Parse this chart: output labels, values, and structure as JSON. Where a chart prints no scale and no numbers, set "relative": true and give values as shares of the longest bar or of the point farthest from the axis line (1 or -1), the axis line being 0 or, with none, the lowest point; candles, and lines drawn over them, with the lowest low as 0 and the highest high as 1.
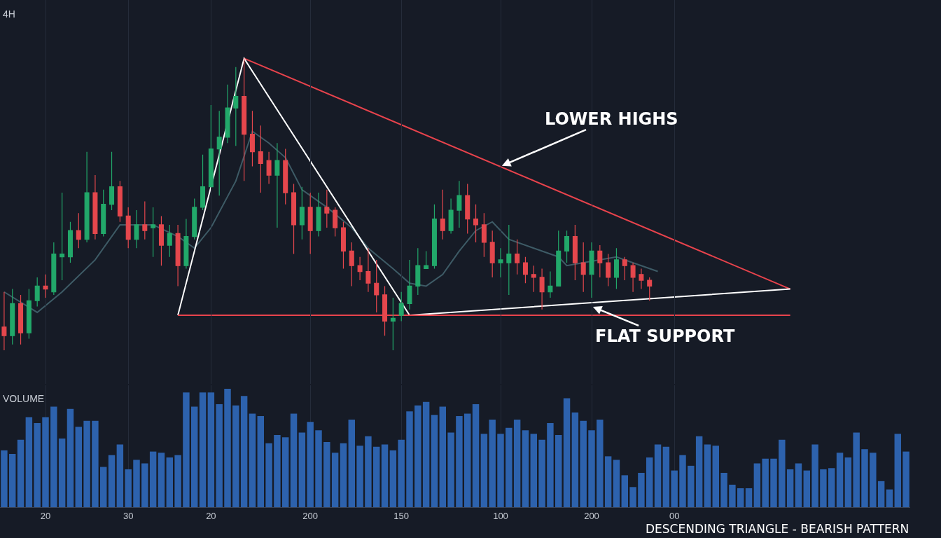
{
  "chart_data": [
    {
      "type": "candlestick",
      "title": "4H",
      "relative": true,
      "grid": "x",
      "tick_labels": false,
      "categories": [
        null,
        null,
        null,
        null,
        null,
        "20",
        null,
        null,
        null,
        null,
        null,
        null,
        null,
        null,
        null,
        "30",
        null,
        null,
        null,
        null,
        null,
        null,
        null,
        null,
        null,
        "20",
        null,
        null,
        null,
        null,
        null,
        null,
        null,
        null,
        null,
        null,
        null,
        "200",
        null,
        null,
        null,
        null,
        null,
        null,
        null,
        null,
        null,
        null,
        "150",
        null,
        null,
        null,
        null,
        null,
        null,
        null,
        null,
        null,
        null,
        null,
        "100",
        null,
        null,
        null,
        null,
        null,
        null,
        null,
        null,
        null,
        null,
        "200",
        null,
        null,
        null,
        null,
        null,
        null,
        null,
        null,
        null,
        "00",
        null,
        null,
        null,
        null,
        null,
        null,
        null,
        null,
        null,
        null,
        null,
        null,
        null,
        null,
        null,
        null,
        null,
        null,
        null,
        null,
        null,
        null,
        null,
        null,
        null,
        null,
        null,
        null
      ],
      "colors": [
        "#e5474d",
        "#22a86a",
        "#e5474d",
        "#22a86a",
        "#22a86a",
        "#e5474d",
        "#22a86a",
        "#22a86a",
        "#22a86a",
        "#e5474d",
        "#22a86a",
        "#e5474d",
        "#22a86a",
        "#22a86a",
        "#e5474d",
        "#e5474d",
        "#22a86a",
        "#e5474d",
        "#22a86a",
        "#e5474d",
        "#22a86a",
        "#e5474d",
        "#22a86a",
        "#22a86a",
        "#22a86a",
        "#22a86a",
        "#22a86a",
        "#22a86a",
        "#22a86a",
        "#e5474d",
        "#e5474d",
        "#e5474d",
        "#e5474d",
        "#22a86a",
        "#e5474d",
        "#e5474d",
        "#22a86a",
        "#e5474d",
        "#22a86a",
        "#e5474d",
        "#e5474d",
        "#e5474d",
        "#e5474d",
        "#e5474d",
        "#e5474d",
        "#e5474d",
        "#e5474d",
        "#22a86a",
        "#22a86a",
        "#22a86a",
        "#22a86a",
        "#22a86a",
        "#22a86a",
        "#e5474d",
        "#22a86a",
        "#22a86a",
        "#e5474d",
        "#e5474d",
        "#e5474d",
        "#e5474d",
        "#22a86a",
        "#22a86a",
        "#e5474d",
        "#e5474d",
        "#e5474d",
        "#e5474d",
        "#22a86a",
        "#22a86a",
        "#22a86a",
        "#e5474d",
        "#e5474d",
        "#22a86a",
        "#e5474d",
        "#e5474d",
        "#22a86a",
        "#e5474d",
        "#e5474d",
        "#e5474d",
        "#e5474d",
        null,
        null,
        null,
        null,
        null,
        null,
        null,
        null,
        null,
        null,
        null,
        null,
        null,
        null,
        null,
        null,
        null,
        null,
        null,
        null,
        null,
        null,
        null,
        null,
        null,
        null,
        null,
        null,
        null,
        null,
        null
      ],
      "ohlc": [
        [
          0.08,
          0.2,
          0,
          0.05
        ],
        [
          0.05,
          0.21,
          0.02,
          0.16
        ],
        [
          0.16,
          0.19,
          0.02,
          0.06
        ],
        [
          0.06,
          0.21,
          0.04,
          0.17
        ],
        [
          0.17,
          0.25,
          0.15,
          0.22
        ],
        [
          0.22,
          0.26,
          0.18,
          0.21
        ],
        [
          0.2,
          0.37,
          0.19,
          0.33
        ],
        [
          0.32,
          0.54,
          0.24,
          0.33
        ],
        [
          0.32,
          0.44,
          0.3,
          0.41
        ],
        [
          0.41,
          0.47,
          0.35,
          0.38
        ],
        [
          0.38,
          0.68,
          0.37,
          0.54
        ],
        [
          0.54,
          0.6,
          0.38,
          0.4
        ],
        [
          0.4,
          0.55,
          0.39,
          0.5
        ],
        [
          0.5,
          0.68,
          0.48,
          0.56
        ],
        [
          0.56,
          0.58,
          0.44,
          0.46
        ],
        [
          0.46,
          0.49,
          0.35,
          0.38
        ],
        [
          0.38,
          0.48,
          0.35,
          0.43
        ],
        [
          0.43,
          0.51,
          0.38,
          0.41
        ],
        [
          0.42,
          0.49,
          0.32,
          0.43
        ],
        [
          0.43,
          0.46,
          0.29,
          0.36
        ],
        [
          0.36,
          0.43,
          0.32,
          0.4
        ],
        [
          0.4,
          0.43,
          0.22,
          0.29
        ],
        [
          0.29,
          0.45,
          0.28,
          0.39
        ],
        [
          0.39,
          0.52,
          0.38,
          0.49
        ],
        [
          0.49,
          0.67,
          0.48,
          0.56
        ],
        [
          0.56,
          0.84,
          0.56,
          0.69
        ],
        [
          0.69,
          0.82,
          0.53,
          0.73
        ],
        [
          0.73,
          0.91,
          0.71,
          0.83
        ],
        [
          0.83,
          0.97,
          0.7,
          0.87
        ],
        [
          0.87,
          1,
          0.58,
          0.74
        ],
        [
          0.74,
          0.82,
          0.63,
          0.68
        ],
        [
          0.68,
          0.77,
          0.54,
          0.64
        ],
        [
          0.65,
          0.68,
          0.57,
          0.6
        ],
        [
          0.6,
          0.71,
          0.42,
          0.65
        ],
        [
          0.65,
          0.69,
          0.5,
          0.54
        ],
        [
          0.54,
          0.57,
          0.33,
          0.43
        ],
        [
          0.43,
          0.56,
          0.38,
          0.49
        ],
        [
          0.49,
          0.54,
          0.33,
          0.41
        ],
        [
          0.41,
          0.54,
          0.39,
          0.49
        ],
        [
          0.49,
          0.55,
          0.42,
          0.47
        ],
        [
          0.48,
          0.49,
          0.39,
          0.42
        ],
        [
          0.42,
          0.44,
          0.28,
          0.34
        ],
        [
          0.34,
          0.37,
          0.22,
          0.29
        ],
        [
          0.29,
          0.32,
          0.24,
          0.27
        ],
        [
          0.27,
          0.35,
          0.2,
          0.23
        ],
        [
          0.23,
          0.31,
          0.13,
          0.19
        ],
        [
          0.19,
          0.22,
          0.05,
          0.1
        ],
        [
          0.1,
          0.18,
          0,
          0.11
        ],
        [
          0.12,
          0.2,
          0.1,
          0.16
        ],
        [
          0.16,
          0.31,
          0.14,
          0.22
        ],
        [
          0.22,
          0.35,
          0.19,
          0.29
        ],
        [
          0.28,
          0.34,
          0.28,
          0.29
        ],
        [
          0.29,
          0.5,
          0.28,
          0.45
        ],
        [
          0.45,
          0.55,
          0.38,
          0.41
        ],
        [
          0.41,
          0.52,
          0.4,
          0.48
        ],
        [
          0.48,
          0.58,
          0.42,
          0.53
        ],
        [
          0.53,
          0.57,
          0.4,
          0.45
        ],
        [
          0.45,
          0.5,
          0.37,
          0.43
        ],
        [
          0.43,
          0.47,
          0.32,
          0.37
        ],
        [
          0.37,
          0.41,
          0.25,
          0.3
        ],
        [
          0.3,
          0.35,
          0.25,
          0.31
        ],
        [
          0.3,
          0.43,
          0.19,
          0.33
        ],
        [
          0.33,
          0.38,
          0.26,
          0.3
        ],
        [
          0.3,
          0.32,
          0.23,
          0.26
        ],
        [
          0.26,
          0.29,
          0.2,
          0.25
        ],
        [
          0.25,
          0.28,
          0.14,
          0.2
        ],
        [
          0.2,
          0.27,
          0.18,
          0.22
        ],
        [
          0.22,
          0.41,
          0.22,
          0.34
        ],
        [
          0.34,
          0.41,
          0.3,
          0.39
        ],
        [
          0.39,
          0.43,
          0.24,
          0.3
        ],
        [
          0.3,
          0.37,
          0.2,
          0.26
        ],
        [
          0.26,
          0.37,
          0.18,
          0.34
        ],
        [
          0.34,
          0.36,
          0.25,
          0.3
        ],
        [
          0.3,
          0.33,
          0.22,
          0.25
        ],
        [
          0.25,
          0.35,
          0.21,
          0.31
        ],
        [
          0.31,
          0.32,
          0.24,
          0.29
        ],
        [
          0.29,
          0.3,
          0.2,
          0.25
        ],
        [
          0.26,
          0.28,
          0.21,
          0.24
        ],
        [
          0.24,
          0.25,
          0.17,
          0.22
        ],
        null,
        null,
        null,
        null,
        null,
        null,
        null,
        null,
        null,
        null,
        null,
        null,
        null,
        null,
        null,
        null,
        null,
        null,
        null,
        null,
        null,
        null,
        null,
        null,
        null,
        null,
        null,
        null,
        null,
        null,
        null
      ],
      "series": [
        {
          "type": "line",
          "color": "#3e5b66",
          "values": [
            0.2,
            null,
            null,
            null,
            0.13,
            null,
            null,
            0.2,
            null,
            null,
            null,
            0.31,
            null,
            null,
            0.43,
            null,
            null,
            null,
            0.43,
            null,
            null,
            0.39,
            null,
            0.35,
            null,
            0.42,
            null,
            null,
            0.58,
            null,
            0.75,
            null,
            0.71,
            null,
            0.66,
            null,
            0.55,
            null,
            null,
            0.49,
            null,
            null,
            0.42,
            null,
            0.35,
            null,
            null,
            0.28,
            null,
            0.23,
            null,
            0.22,
            null,
            0.26,
            null,
            0.34,
            null,
            0.41,
            null,
            0.44,
            null,
            0.38,
            null,
            null,
            0.35,
            null,
            null,
            0.32,
            0.29,
            null,
            0.3,
            null,
            null,
            null,
            0.32,
            null,
            null,
            0.29,
            null,
            0.27,
            null,
            null,
            null,
            null,
            null,
            null,
            null,
            null,
            null,
            null,
            null,
            null,
            null,
            null,
            null,
            null,
            null,
            null,
            null,
            null,
            null,
            null,
            null,
            null,
            null,
            null,
            null,
            null,
            null,
            null
          ]
        },
        {
          "type": "line",
          "color": "#e8434c",
          "values": [
            null,
            null,
            null,
            null,
            null,
            null,
            null,
            null,
            null,
            null,
            null,
            null,
            null,
            null,
            null,
            null,
            null,
            null,
            null,
            null,
            null,
            null,
            null,
            null,
            null,
            null,
            null,
            null,
            null,
            1,
            null,
            null,
            null,
            null,
            null,
            null,
            null,
            null,
            null,
            null,
            null,
            null,
            null,
            null,
            null,
            null,
            null,
            null,
            null,
            null,
            null,
            null,
            null,
            null,
            null,
            null,
            null,
            null,
            null,
            null,
            null,
            null,
            null,
            null,
            null,
            null,
            null,
            null,
            null,
            null,
            null,
            null,
            null,
            null,
            null,
            null,
            null,
            null,
            null,
            null,
            null,
            null,
            null,
            null,
            null,
            null,
            null,
            null,
            null,
            null,
            null,
            null,
            null,
            null,
            null,
            0.21,
            null,
            null,
            null,
            null,
            null,
            null,
            null,
            null,
            null,
            null,
            null,
            null,
            null,
            null
          ]
        },
        {
          "type": "line",
          "color": "#ffffff",
          "values": [
            null,
            null,
            null,
            null,
            null,
            null,
            null,
            null,
            null,
            null,
            null,
            null,
            null,
            null,
            null,
            null,
            null,
            null,
            null,
            null,
            null,
            0.12,
            null,
            null,
            null,
            null,
            null,
            null,
            null,
            1,
            null,
            null,
            null,
            null,
            null,
            null,
            null,
            null,
            null,
            null,
            null,
            null,
            null,
            null,
            null,
            null,
            null,
            null,
            null,
            0.12,
            null,
            null,
            null,
            null,
            null,
            null,
            null,
            null,
            null,
            null,
            null,
            null,
            null,
            null,
            null,
            null,
            null,
            null,
            null,
            null,
            null,
            null,
            null,
            null,
            null,
            null,
            null,
            null,
            null,
            null,
            null,
            null,
            null,
            null,
            null,
            null,
            null,
            null,
            null,
            null,
            null,
            null,
            null,
            null,
            null,
            0.21,
            null,
            null,
            null,
            null,
            null,
            null,
            null,
            null,
            null,
            null,
            null,
            null,
            null,
            null
          ]
        },
        {
          "type": "line",
          "color": "#e8434c",
          "values": [
            null,
            null,
            null,
            null,
            null,
            null,
            null,
            null,
            null,
            null,
            null,
            null,
            null,
            null,
            null,
            null,
            null,
            null,
            null,
            null,
            null,
            0.12,
            null,
            null,
            null,
            null,
            null,
            null,
            null,
            null,
            null,
            null,
            null,
            null,
            null,
            null,
            null,
            null,
            null,
            null,
            null,
            null,
            null,
            null,
            null,
            null,
            null,
            null,
            null,
            null,
            null,
            null,
            null,
            null,
            null,
            null,
            null,
            null,
            null,
            null,
            null,
            null,
            null,
            null,
            null,
            null,
            null,
            null,
            null,
            null,
            null,
            null,
            null,
            null,
            null,
            null,
            null,
            null,
            null,
            null,
            null,
            null,
            null,
            null,
            null,
            null,
            null,
            null,
            null,
            null,
            null,
            null,
            null,
            null,
            null,
            0.12,
            null,
            null,
            null,
            null,
            null,
            null,
            null,
            null,
            null,
            null,
            null,
            null,
            null,
            null
          ]
        }
      ],
      "annotations": [
        {
          "text": "LOWER HIGHS",
          "x": "100",
          "y": 0.63
        },
        "FLAT SUPPORT"
      ]
    },
    {
      "type": "bar",
      "title": "VOLUME",
      "relative": true,
      "grid": "x",
      "tick_labels": "x",
      "color": "#2d62ad",
      "categories": [
        null,
        null,
        null,
        null,
        null,
        "20",
        null,
        null,
        null,
        null,
        null,
        null,
        null,
        null,
        null,
        "30",
        null,
        null,
        null,
        null,
        null,
        null,
        null,
        null,
        null,
        "20",
        null,
        null,
        null,
        null,
        null,
        null,
        null,
        null,
        null,
        null,
        null,
        "200",
        null,
        null,
        null,
        null,
        null,
        null,
        null,
        null,
        null,
        null,
        "150",
        null,
        null,
        null,
        null,
        null,
        null,
        null,
        null,
        null,
        null,
        null,
        "100",
        null,
        null,
        null,
        null,
        null,
        null,
        null,
        null,
        null,
        null,
        "200",
        null,
        null,
        null,
        null,
        null,
        null,
        null,
        null,
        null,
        "00",
        null,
        null,
        null,
        null,
        null,
        null,
        null,
        null,
        null,
        null,
        null,
        null,
        null,
        null,
        null,
        null,
        null,
        null,
        null,
        null,
        null,
        null,
        null,
        null,
        null,
        null,
        null,
        null
      ],
      "values": [
        0.48,
        0.45,
        0.57,
        0.76,
        0.71,
        0.76,
        0.85,
        0.58,
        0.83,
        0.68,
        0.73,
        0.73,
        0.34,
        0.44,
        0.53,
        0.32,
        0.4,
        0.37,
        0.47,
        0.46,
        0.42,
        0.44,
        0.97,
        0.85,
        0.97,
        0.97,
        0.87,
        1,
        0.86,
        0.94,
        0.79,
        0.77,
        0.54,
        0.61,
        0.59,
        0.79,
        0.63,
        0.72,
        0.65,
        0.55,
        0.46,
        0.54,
        0.74,
        0.52,
        0.6,
        0.51,
        0.53,
        0.48,
        0.57,
        0.81,
        0.86,
        0.89,
        0.78,
        0.85,
        0.63,
        0.77,
        0.79,
        0.87,
        0.62,
        0.74,
        0.62,
        0.67,
        0.74,
        0.65,
        0.62,
        0.57,
        0.71,
        0.61,
        0.92,
        0.8,
        0.73,
        0.65,
        0.74,
        0.43,
        0.4,
        0.27,
        0.17,
        0.29,
        0.42,
        0.53,
        0.51,
        0.31,
        0.44,
        0.35,
        0.6,
        0.53,
        0.52,
        0.29,
        0.19,
        0.16,
        0.16,
        0.37,
        0.41,
        0.41,
        0.57,
        0.32,
        0.37,
        0.31,
        0.53,
        0.32,
        0.33,
        0.46,
        0.42,
        0.63,
        0.49,
        0.46,
        0.22,
        0.15,
        0.62,
        0.47
      ],
      "annotations": [
        "DESCENDING TRIANGLE - BEARISH PATTERN"
      ]
    }
  ]
}
